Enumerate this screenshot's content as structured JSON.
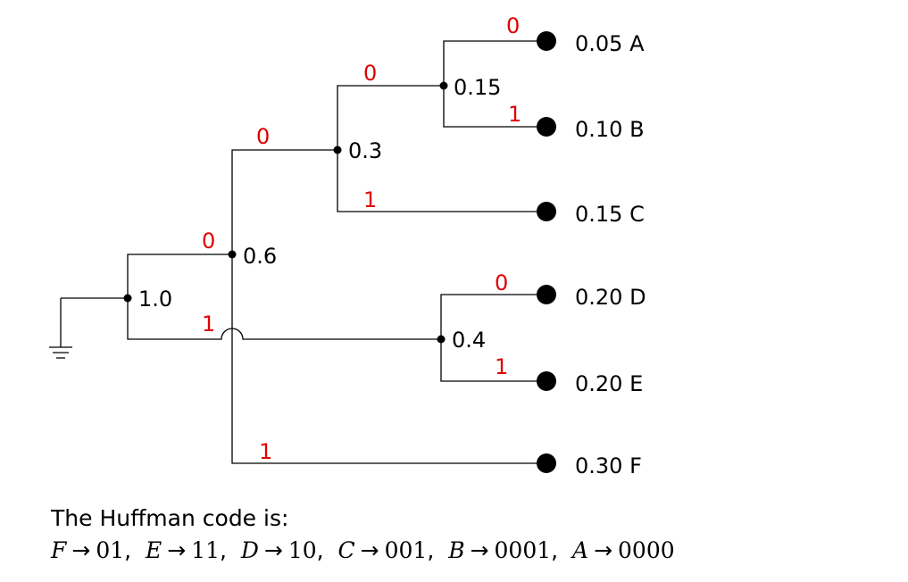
{
  "tree": {
    "root": {
      "value": "1.0"
    },
    "internal_nodes": [
      {
        "id": "n06",
        "value": "0.6"
      },
      {
        "id": "n03",
        "value": "0.3"
      },
      {
        "id": "n015",
        "value": "0.15"
      },
      {
        "id": "n04",
        "value": "0.4"
      }
    ],
    "leaves": [
      {
        "id": "A",
        "label": "0.05 A"
      },
      {
        "id": "B",
        "label": "0.10 B"
      },
      {
        "id": "C",
        "label": "0.15 C"
      },
      {
        "id": "D",
        "label": "0.20 D"
      },
      {
        "id": "E",
        "label": "0.20 E"
      },
      {
        "id": "F",
        "label": "0.30 F"
      }
    ],
    "branch_bits": {
      "root_to_06": "0",
      "root_to_04": "1",
      "n06_to_03": "0",
      "n06_to_F": "1",
      "n03_to_015": "0",
      "n03_to_C": "1",
      "n015_to_A": "0",
      "n015_to_B": "1",
      "n04_to_D": "0",
      "n04_to_E": "1"
    },
    "bit_color": "#e00000",
    "wire_color": "#000000"
  },
  "caption": {
    "intro": "The Huffman code is:",
    "arrow": "→",
    "codes": [
      {
        "symbol": "F",
        "code": "01"
      },
      {
        "symbol": "E",
        "code": "11"
      },
      {
        "symbol": "D",
        "code": "10"
      },
      {
        "symbol": "C",
        "code": "001"
      },
      {
        "symbol": "B",
        "code": "0001"
      },
      {
        "symbol": "A",
        "code": "0000"
      }
    ]
  }
}
